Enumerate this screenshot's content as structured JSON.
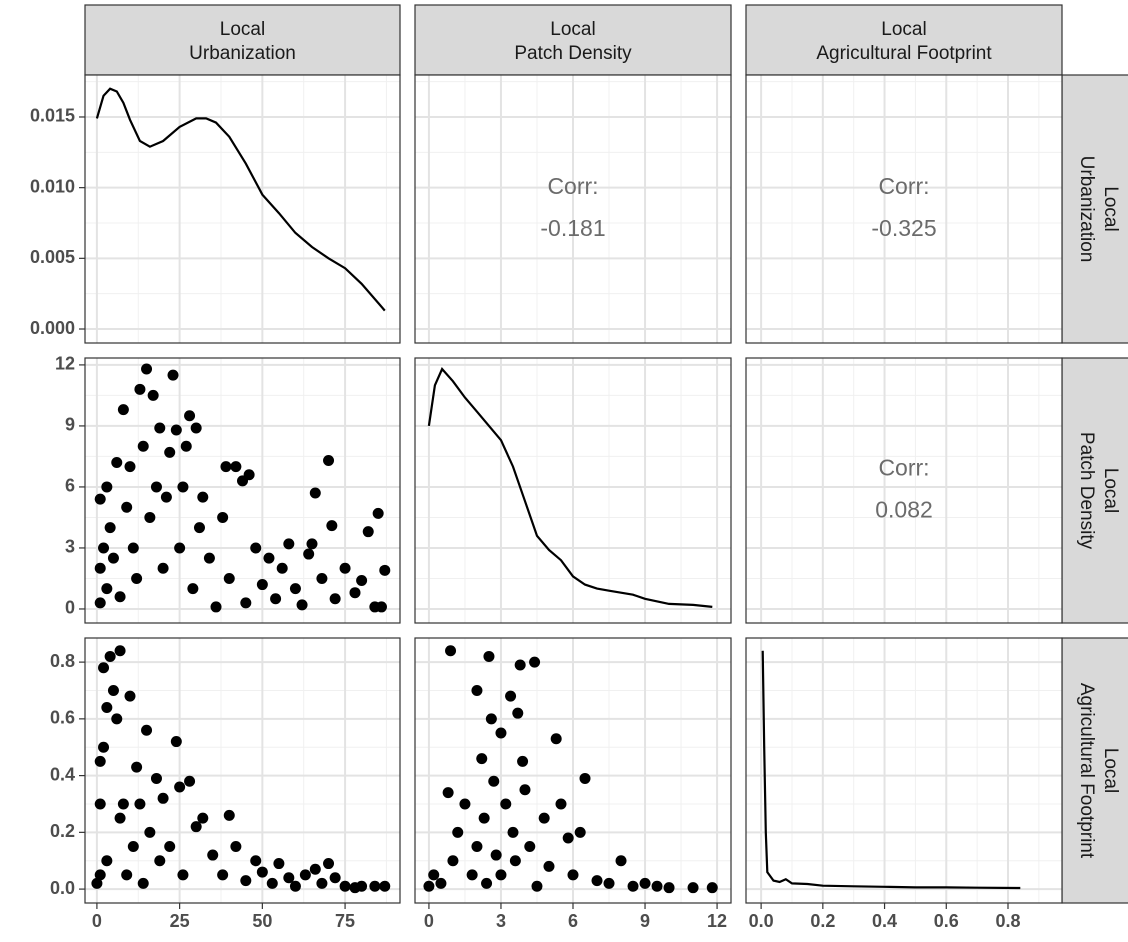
{
  "chart_data": {
    "type": "pairs",
    "variables": [
      [
        "Local",
        "Urbanization"
      ],
      [
        "Local",
        "Patch Density"
      ],
      [
        "Local",
        "Agricultural Footprint"
      ]
    ],
    "x_axes": [
      {
        "xlim": [
          -3.6,
          91.6
        ],
        "xticks": [
          0,
          25,
          50,
          75
        ]
      },
      {
        "xlim": [
          -0.58,
          12.58
        ],
        "xticks": [
          0,
          3,
          6,
          9,
          12
        ]
      },
      {
        "xlim": [
          -0.049,
          0.975
        ],
        "xticks": [
          {
            "value": 0,
            "label": "0.0"
          },
          0.2,
          0.4,
          0.6,
          0.8
        ]
      }
    ],
    "y_axes": [
      {
        "ylim": [
          -0.00099,
          0.01797
        ],
        "yticks": [
          {
            "value": 0,
            "label": "0.000"
          },
          0.005,
          {
            "value": 0.01,
            "label": "0.010"
          },
          0.015
        ]
      },
      {
        "ylim": [
          -0.69,
          12.34
        ],
        "yticks": [
          0,
          3,
          6,
          9,
          12
        ]
      },
      {
        "ylim": [
          -0.049,
          0.885
        ],
        "yticks": [
          {
            "value": 0,
            "label": "0.0"
          },
          0.2,
          0.4,
          0.6,
          0.8
        ]
      }
    ],
    "grid": true,
    "color": "#000000",
    "panels": [
      [
        {
          "type": "line",
          "x": [
            0,
            2,
            4,
            6,
            8,
            10,
            13,
            16,
            20,
            25,
            30,
            33,
            36,
            40,
            45,
            50,
            55,
            60,
            65,
            70,
            75,
            80,
            87
          ],
          "y": [
            0.0149,
            0.0165,
            0.017,
            0.0168,
            0.016,
            0.0148,
            0.0133,
            0.0129,
            0.0133,
            0.0143,
            0.0149,
            0.0149,
            0.0146,
            0.0136,
            0.0117,
            0.0095,
            0.0082,
            0.0068,
            0.0058,
            0.005,
            0.0043,
            0.0032,
            0.0013
          ]
        },
        {
          "type": "corr",
          "label": "Corr:",
          "value": -0.181
        },
        {
          "type": "corr",
          "label": "Corr:",
          "value": -0.325
        }
      ],
      [
        {
          "type": "scatter",
          "x": [
            1,
            1,
            1,
            2,
            3,
            3,
            4,
            5,
            6,
            7,
            8,
            9,
            10,
            11,
            12,
            13,
            14,
            15,
            16,
            17,
            18,
            19,
            20,
            21,
            22,
            23,
            24,
            25,
            26,
            27,
            28,
            29,
            30,
            31,
            32,
            34,
            36,
            38,
            39,
            40,
            42,
            44,
            45,
            46,
            48,
            50,
            52,
            54,
            56,
            58,
            60,
            62,
            64,
            65,
            66,
            68,
            70,
            71,
            72,
            75,
            78,
            80,
            82,
            84,
            85,
            87,
            86
          ],
          "y": [
            0.3,
            2,
            5.4,
            3,
            1,
            6,
            4,
            2.5,
            7.2,
            0.6,
            9.8,
            5,
            7,
            3,
            1.5,
            10.8,
            8,
            11.8,
            4.5,
            10.5,
            6,
            8.9,
            2,
            5.5,
            7.7,
            11.5,
            8.8,
            3,
            6,
            8,
            9.5,
            1,
            8.9,
            4,
            5.5,
            2.5,
            0.1,
            4.5,
            7,
            1.5,
            7,
            6.3,
            0.3,
            6.6,
            3,
            1.2,
            2.5,
            0.5,
            2,
            3.2,
            1,
            0.2,
            2.7,
            3.2,
            5.7,
            1.5,
            7.3,
            4.1,
            0.5,
            2,
            0.8,
            1.4,
            3.8,
            0.1,
            4.7,
            1.9,
            0.1
          ]
        },
        {
          "type": "line",
          "x": [
            0,
            0.25,
            0.55,
            1,
            1.5,
            2,
            2.5,
            3,
            3.5,
            4,
            4.5,
            5,
            5.5,
            6,
            6.5,
            7,
            7.5,
            8,
            8.5,
            9,
            10,
            11,
            11.8
          ],
          "y": [
            9,
            11,
            11.8,
            11.2,
            10.4,
            9.7,
            9,
            8.3,
            7,
            5.3,
            3.6,
            2.9,
            2.4,
            1.6,
            1.2,
            1,
            0.9,
            0.8,
            0.7,
            0.5,
            0.25,
            0.2,
            0.1
          ]
        },
        {
          "type": "corr",
          "label": "Corr:",
          "value": 0.082
        }
      ],
      [
        {
          "type": "scatter",
          "x": [
            0,
            1,
            1,
            1,
            2,
            2,
            3,
            3,
            4,
            5,
            6,
            7,
            7,
            8,
            9,
            10,
            11,
            12,
            13,
            14,
            15,
            16,
            18,
            19,
            20,
            22,
            24,
            25,
            26,
            28,
            30,
            32,
            35,
            38,
            40,
            42,
            45,
            48,
            50,
            53,
            55,
            58,
            60,
            63,
            66,
            68,
            70,
            72,
            75,
            78,
            80,
            84,
            87
          ],
          "y": [
            0.02,
            0.05,
            0.3,
            0.45,
            0.78,
            0.5,
            0.64,
            0.1,
            0.82,
            0.7,
            0.6,
            0.84,
            0.25,
            0.3,
            0.05,
            0.68,
            0.15,
            0.43,
            0.3,
            0.02,
            0.56,
            0.2,
            0.39,
            0.1,
            0.32,
            0.15,
            0.52,
            0.36,
            0.05,
            0.38,
            0.22,
            0.25,
            0.12,
            0.05,
            0.26,
            0.15,
            0.03,
            0.1,
            0.06,
            0.02,
            0.09,
            0.04,
            0.01,
            0.05,
            0.07,
            0.02,
            0.09,
            0.04,
            0.01,
            0.005,
            0.01,
            0.01,
            0.01
          ]
        },
        {
          "type": "scatter",
          "x": [
            0,
            0.2,
            0.5,
            0.8,
            0.9,
            1,
            1.2,
            1.5,
            1.8,
            2,
            2,
            2.2,
            2.3,
            2.4,
            2.5,
            2.6,
            2.7,
            2.8,
            3,
            3,
            3.2,
            3.4,
            3.5,
            3.6,
            3.7,
            3.8,
            3.9,
            4,
            4.2,
            4.4,
            4.5,
            4.8,
            5,
            5.3,
            5.5,
            5.8,
            6,
            6.3,
            6.5,
            7,
            7.5,
            8,
            8.5,
            9,
            9.5,
            10,
            11,
            11.8
          ],
          "y": [
            0.01,
            0.05,
            0.02,
            0.34,
            0.84,
            0.1,
            0.2,
            0.3,
            0.05,
            0.7,
            0.15,
            0.46,
            0.25,
            0.02,
            0.82,
            0.6,
            0.38,
            0.12,
            0.55,
            0.05,
            0.3,
            0.68,
            0.2,
            0.1,
            0.62,
            0.79,
            0.45,
            0.35,
            0.15,
            0.8,
            0.01,
            0.25,
            0.08,
            0.53,
            0.3,
            0.18,
            0.05,
            0.2,
            0.39,
            0.03,
            0.02,
            0.1,
            0.01,
            0.02,
            0.01,
            0.005,
            0.005,
            0.005
          ]
        },
        {
          "type": "line",
          "x": [
            0.005,
            0.01,
            0.015,
            0.02,
            0.04,
            0.06,
            0.08,
            0.1,
            0.15,
            0.2,
            0.3,
            0.4,
            0.5,
            0.6,
            0.7,
            0.84
          ],
          "y": [
            0.84,
            0.5,
            0.2,
            0.06,
            0.03,
            0.025,
            0.035,
            0.02,
            0.018,
            0.012,
            0.01,
            0.008,
            0.006,
            0.006,
            0.005,
            0.004
          ]
        }
      ]
    ]
  }
}
